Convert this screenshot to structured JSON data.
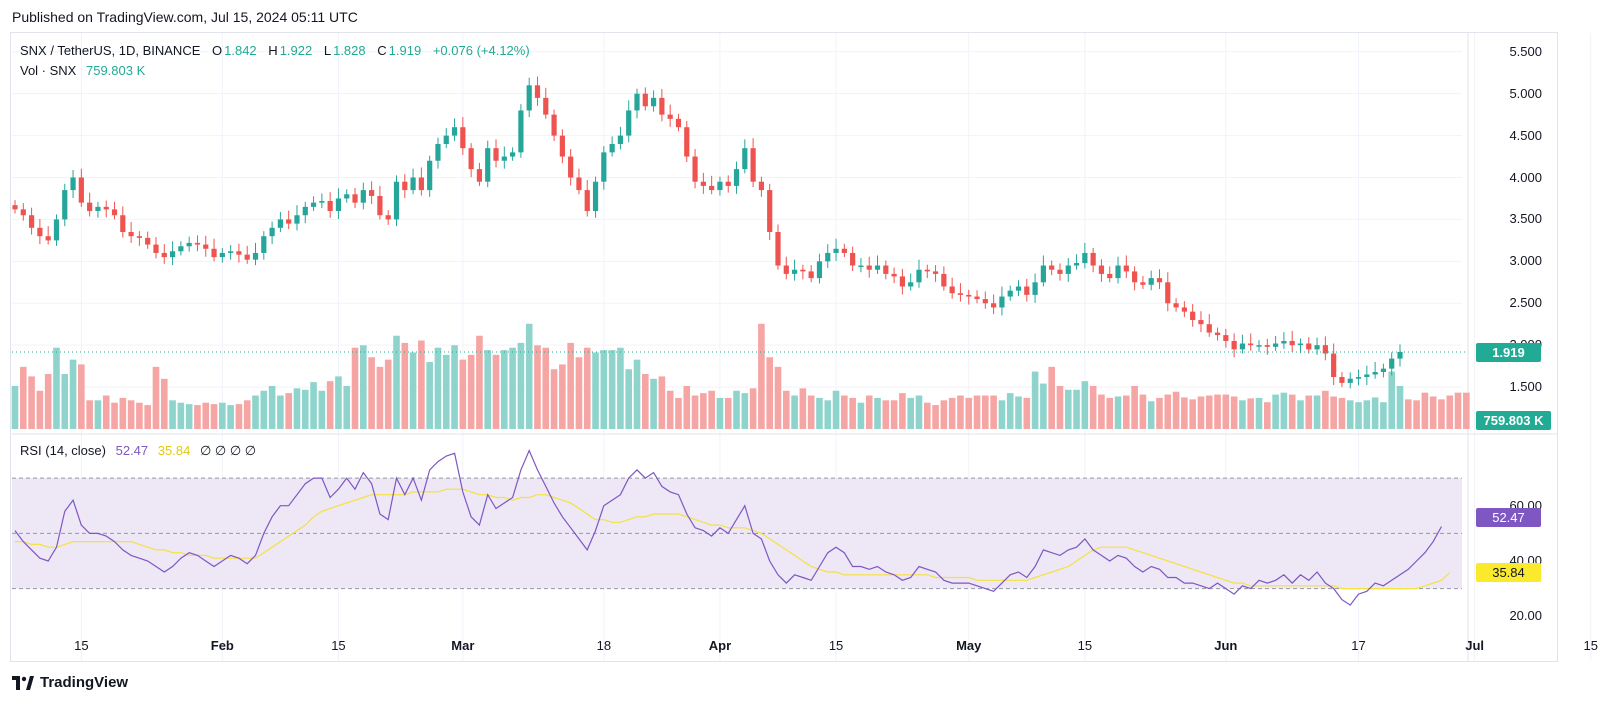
{
  "header": {
    "published": "Published on TradingView.com, Jul 15, 2024 05:11 UTC"
  },
  "legend": {
    "symbol": "SNX / TetherUS, 1D, BINANCE",
    "o_label": "O",
    "o": "1.842",
    "h_label": "H",
    "h": "1.922",
    "l_label": "L",
    "l": "1.828",
    "c_label": "C",
    "c": "1.919",
    "change": "+0.076 (+4.12%)",
    "vol_label": "Vol · SNX",
    "vol": "759.803 K",
    "rsi_label": "RSI (14, close)",
    "rsi": "52.47",
    "rsi_ma": "35.84",
    "rsi_na": "∅ ∅ ∅ ∅"
  },
  "price_axis": [
    "5.500",
    "5.000",
    "4.500",
    "4.000",
    "3.500",
    "3.000",
    "2.500",
    "2.000",
    "1.500"
  ],
  "rsi_axis": [
    "60.00",
    "40.00",
    "20.00"
  ],
  "tags": {
    "last_price": "1.919",
    "volume": "759.803 K",
    "rsi": "52.47",
    "rsi_ma": "35.84"
  },
  "x_labels": [
    {
      "text": "15",
      "bold": false
    },
    {
      "text": "Feb",
      "bold": true
    },
    {
      "text": "15",
      "bold": false
    },
    {
      "text": "Mar",
      "bold": true
    },
    {
      "text": "18",
      "bold": false
    },
    {
      "text": "Apr",
      "bold": true
    },
    {
      "text": "15",
      "bold": false
    },
    {
      "text": "May",
      "bold": true
    },
    {
      "text": "15",
      "bold": false
    },
    {
      "text": "Jun",
      "bold": true
    },
    {
      "text": "17",
      "bold": false
    },
    {
      "text": "Jul",
      "bold": true
    },
    {
      "text": "15",
      "bold": false
    }
  ],
  "brand": {
    "name": "TradingView"
  },
  "colors": {
    "up": "#26a69a",
    "down": "#ef5350",
    "rsi": "#7e57c2",
    "rsi_ma": "#f5e142",
    "band": "#ede7f6"
  },
  "chart_data": {
    "type": "candlestick",
    "symbol": "SNX / TetherUS",
    "interval": "1D",
    "exchange": "BINANCE",
    "price_range": [
      1.0,
      5.7
    ],
    "rsi_range": [
      15,
      82
    ],
    "rsi_levels": [
      70,
      50,
      30
    ],
    "start_date": "2024-01-07",
    "x_tick_dates": [
      "2024-01-15",
      "2024-02-01",
      "2024-02-15",
      "2024-03-01",
      "2024-03-18",
      "2024-04-01",
      "2024-04-15",
      "2024-05-01",
      "2024-05-15",
      "2024-06-01",
      "2024-06-17",
      "2024-07-01",
      "2024-07-15"
    ],
    "close": [
      3.62,
      3.55,
      3.4,
      3.3,
      3.25,
      3.5,
      3.85,
      4.0,
      3.7,
      3.6,
      3.65,
      3.62,
      3.55,
      3.35,
      3.3,
      3.28,
      3.2,
      3.1,
      3.05,
      3.12,
      3.18,
      3.22,
      3.2,
      3.15,
      3.05,
      3.1,
      3.12,
      3.08,
      3.02,
      3.1,
      3.3,
      3.4,
      3.5,
      3.45,
      3.55,
      3.65,
      3.7,
      3.72,
      3.6,
      3.75,
      3.8,
      3.7,
      3.85,
      3.78,
      3.55,
      3.5,
      3.95,
      3.85,
      4.0,
      3.85,
      4.2,
      4.4,
      4.5,
      4.6,
      4.35,
      4.1,
      3.95,
      4.35,
      4.2,
      4.25,
      4.3,
      4.8,
      5.1,
      4.95,
      4.75,
      4.5,
      4.25,
      4.0,
      3.85,
      3.6,
      3.95,
      4.3,
      4.4,
      4.5,
      4.8,
      5.0,
      4.85,
      4.95,
      4.75,
      4.7,
      4.6,
      4.25,
      3.95,
      3.9,
      3.85,
      3.95,
      3.9,
      4.1,
      4.35,
      3.95,
      3.85,
      3.35,
      2.95,
      2.85,
      2.9,
      2.88,
      2.8,
      3.0,
      3.1,
      3.15,
      3.1,
      2.95,
      2.95,
      2.9,
      2.95,
      2.85,
      2.82,
      2.7,
      2.75,
      2.9,
      2.88,
      2.85,
      2.7,
      2.62,
      2.6,
      2.58,
      2.55,
      2.5,
      2.45,
      2.58,
      2.65,
      2.7,
      2.6,
      2.75,
      2.95,
      2.9,
      2.85,
      2.95,
      2.98,
      3.1,
      2.95,
      2.85,
      2.8,
      2.95,
      2.88,
      2.75,
      2.72,
      2.8,
      2.75,
      2.5,
      2.45,
      2.4,
      2.3,
      2.25,
      2.15,
      2.12,
      2.05,
      1.95,
      2.02,
      2.0,
      2.0,
      1.98,
      2.02,
      2.05,
      2.0,
      2.02,
      1.95,
      2.0,
      1.9,
      1.62,
      1.55,
      1.6,
      1.62,
      1.65,
      1.68,
      1.72,
      1.84,
      1.919
    ],
    "volume_k": [
      900,
      1300,
      1100,
      800,
      1150,
      1700,
      1150,
      1450,
      1350,
      600,
      600,
      700,
      550,
      650,
      600,
      550,
      500,
      1300,
      1050,
      600,
      550,
      520,
      500,
      550,
      520,
      550,
      500,
      520,
      600,
      700,
      800,
      900,
      700,
      750,
      850,
      820,
      980,
      800,
      1000,
      1100,
      900,
      1700,
      1750,
      1500,
      1300,
      1450,
      1950,
      1800,
      1600,
      1850,
      1400,
      1700,
      1550,
      1750,
      1450,
      1550,
      1950,
      1650,
      1550,
      1650,
      1700,
      1800,
      2200,
      1750,
      1700,
      1250,
      1350,
      1800,
      1500,
      1700,
      1600,
      1650,
      1650,
      1700,
      1250,
      1450,
      1150,
      1050,
      1100,
      800,
      650,
      900,
      700,
      750,
      800,
      650,
      650,
      800,
      750,
      850,
      2200,
      1500,
      1300,
      800,
      700,
      850,
      700,
      650,
      600,
      800,
      700,
      650,
      550,
      700,
      650,
      600,
      600,
      750,
      650,
      700,
      550,
      500,
      600,
      650,
      700,
      650,
      700,
      700,
      700,
      600,
      750,
      680,
      650,
      1200,
      950,
      1300,
      900,
      820,
      820,
      1000,
      900,
      720,
      650,
      680,
      700,
      900,
      720,
      580,
      650,
      720,
      780,
      660,
      620,
      680,
      700,
      720,
      720,
      680,
      600,
      640,
      650,
      560,
      720,
      760,
      720,
      600,
      700,
      700,
      800,
      680,
      650,
      600,
      560,
      600,
      660,
      560,
      1200,
      900,
      620,
      600,
      760,
      680,
      620,
      700,
      760,
      759.803
    ],
    "rsi": [
      51,
      47,
      44,
      41,
      40,
      45,
      58,
      62,
      53,
      50,
      50,
      49,
      47,
      44,
      42,
      41,
      40,
      38,
      36,
      38,
      41,
      43,
      42,
      40,
      38,
      40,
      42,
      41,
      39,
      42,
      50,
      56,
      60,
      60,
      64,
      68,
      70,
      70,
      63,
      66,
      70,
      66,
      72,
      68,
      57,
      55,
      70,
      64,
      70,
      62,
      73,
      76,
      78,
      79,
      65,
      56,
      53,
      64,
      59,
      61,
      63,
      73,
      80,
      73,
      67,
      61,
      56,
      52,
      48,
      44,
      51,
      60,
      62,
      64,
      70,
      73,
      70,
      72,
      67,
      65,
      64,
      57,
      52,
      51,
      49,
      52,
      50,
      55,
      60,
      50,
      48,
      40,
      35,
      32,
      35,
      34,
      33,
      38,
      43,
      45,
      43,
      38,
      38,
      37,
      38,
      36,
      35,
      33,
      34,
      38,
      37,
      36,
      33,
      32,
      32,
      32,
      31,
      30,
      29,
      32,
      35,
      36,
      34,
      38,
      44,
      43,
      42,
      44,
      45,
      48,
      44,
      42,
      40,
      42,
      41,
      38,
      36,
      38,
      37,
      34,
      34,
      32,
      32,
      31,
      30,
      32,
      30,
      28,
      31,
      30,
      33,
      32,
      33,
      35,
      32,
      35,
      33,
      36,
      32,
      30,
      26,
      24,
      28,
      29,
      32,
      31,
      33,
      35,
      37,
      40,
      43,
      47,
      52.47
    ],
    "rsi_ma": [
      47,
      47,
      46,
      46,
      45,
      45,
      46,
      47,
      47,
      47,
      47,
      47,
      47,
      47,
      47,
      46,
      45,
      44,
      44,
      43,
      43,
      42,
      42,
      42,
      41,
      41,
      41,
      41,
      41,
      41,
      43,
      45,
      47,
      49,
      51,
      53,
      56,
      58,
      59,
      60,
      61,
      62,
      63,
      64,
      64,
      64,
      64,
      64,
      65,
      65,
      65,
      65,
      66,
      66,
      66,
      65,
      64,
      64,
      63,
      63,
      62,
      63,
      63,
      64,
      64,
      63,
      62,
      61,
      59,
      57,
      55,
      55,
      54,
      54,
      55,
      56,
      56,
      57,
      57,
      57,
      57,
      56,
      55,
      54,
      53,
      53,
      52,
      52,
      52,
      51,
      50,
      48,
      46,
      44,
      42,
      40,
      38,
      37,
      36,
      36,
      35,
      35,
      35,
      35,
      35,
      35,
      35,
      35,
      35,
      35,
      35,
      34,
      34,
      34,
      34,
      34,
      33,
      33,
      33,
      33,
      33,
      33,
      33,
      34,
      35,
      36,
      37,
      38,
      40,
      42,
      44,
      45,
      45,
      45,
      45,
      44,
      43,
      42,
      41,
      40,
      39,
      38,
      37,
      36,
      35,
      34,
      33,
      32,
      32,
      31,
      31,
      31,
      31,
      31,
      31,
      31,
      31,
      31,
      31,
      31,
      30,
      30,
      30,
      30,
      30,
      30,
      30,
      30,
      30,
      30,
      31,
      32,
      33,
      35.84
    ]
  }
}
